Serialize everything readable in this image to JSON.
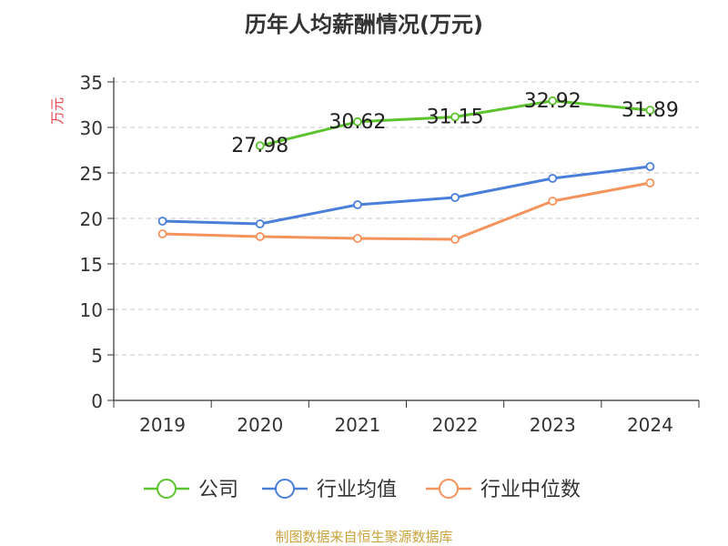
{
  "chart_data": {
    "type": "line",
    "title": "历年人均薪酬情况(万元)",
    "ylabel": "万元",
    "xlabel": "",
    "categories": [
      "2019",
      "2020",
      "2021",
      "2022",
      "2023",
      "2024"
    ],
    "ylim": [
      0,
      35
    ],
    "yticks": [
      0,
      5,
      10,
      15,
      20,
      25,
      30,
      35
    ],
    "grid": true,
    "legend_position": "bottom",
    "series": [
      {
        "name": "公司",
        "color": "#5cc22e",
        "values": [
          null,
          27.98,
          30.62,
          31.15,
          32.92,
          31.89
        ],
        "labels": [
          "",
          "27.98",
          "30.62",
          "31.15",
          "32.92",
          "31.89"
        ]
      },
      {
        "name": "行业均值",
        "color": "#4a7fd9",
        "values": [
          19.7,
          19.4,
          21.5,
          22.3,
          24.4,
          25.7
        ]
      },
      {
        "name": "行业中位数",
        "color": "#f5935c",
        "values": [
          18.3,
          18.0,
          17.8,
          17.7,
          21.9,
          23.9
        ]
      }
    ],
    "source": "制图数据来自恒生聚源数据库"
  }
}
